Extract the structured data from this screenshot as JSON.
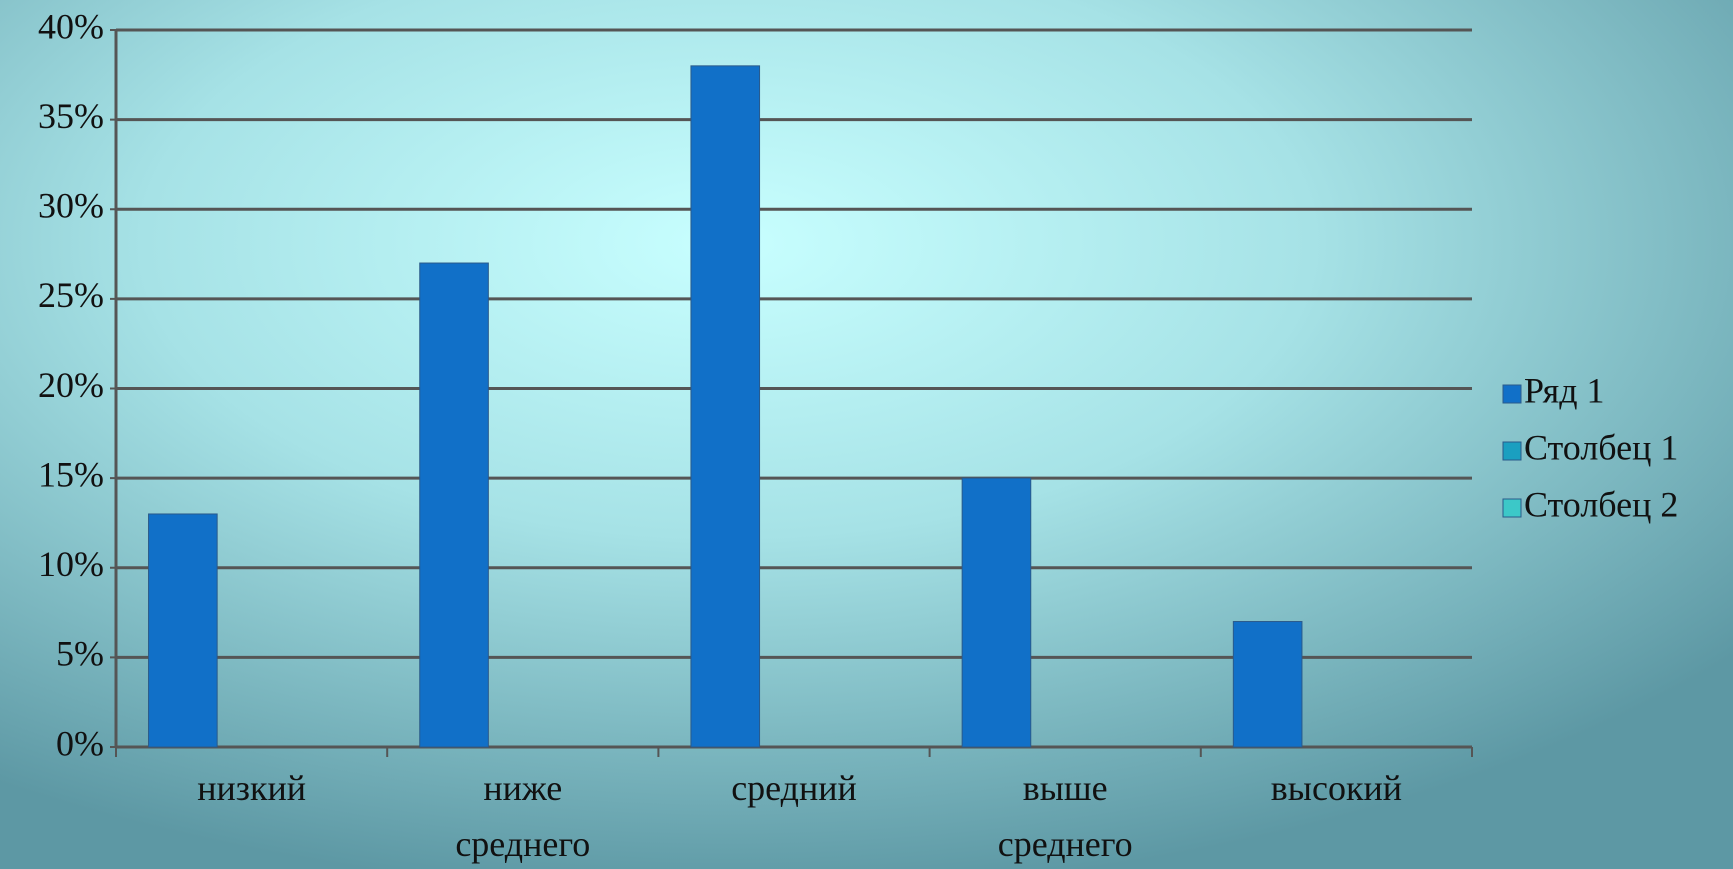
{
  "chart_data": {
    "type": "bar",
    "categories": [
      "низкий",
      "ниже среднего",
      "средний",
      "выше среднего",
      "высокий"
    ],
    "series": [
      {
        "name": "Ряд 1",
        "color": "#1170c8",
        "values": [
          13,
          27,
          38,
          15,
          7
        ]
      },
      {
        "name": "Столбец 1",
        "color": "#1a9fc0",
        "values": [
          null,
          null,
          null,
          null,
          null
        ]
      },
      {
        "name": "Столбец 2",
        "color": "#3cc8c8",
        "values": [
          null,
          null,
          null,
          null,
          null
        ]
      }
    ],
    "ylim": [
      0,
      40
    ],
    "yticks": [
      {
        "value": 0,
        "label": "0%"
      },
      {
        "value": 5,
        "label": "5%"
      },
      {
        "value": 10,
        "label": "10%"
      },
      {
        "value": 15,
        "label": "15%"
      },
      {
        "value": 20,
        "label": "20%"
      },
      {
        "value": 25,
        "label": "25%"
      },
      {
        "value": 30,
        "label": "30%"
      },
      {
        "value": 35,
        "label": "35%"
      },
      {
        "value": 40,
        "label": "40%"
      }
    ],
    "grid": true,
    "legend": "right"
  }
}
